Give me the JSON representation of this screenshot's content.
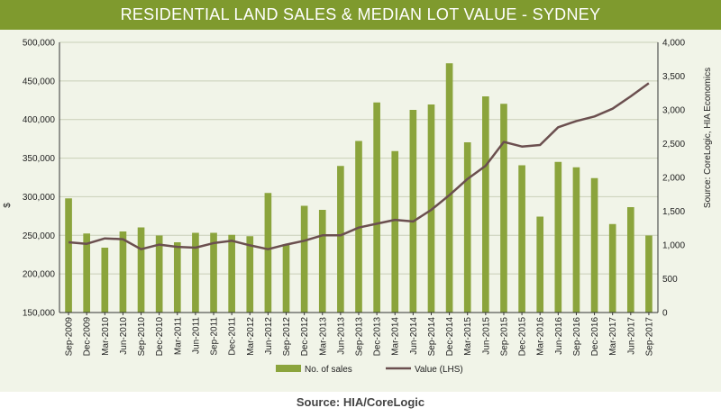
{
  "title": "RESIDENTIAL LAND SALES & MEDIAN LOT VALUE - SYDNEY",
  "footer": "Source: HIA/CoreLogic",
  "colors": {
    "title_bg": "#7f9a2e",
    "bars": "#8ba43c",
    "line": "#6b4f4f",
    "chart_bg": "#f1f4e8"
  },
  "chart_data": {
    "type": "bar",
    "categories": [
      "Sep-2009",
      "Dec-2009",
      "Mar-2010",
      "Jun-2010",
      "Sep-2010",
      "Dec-2010",
      "Mar-2011",
      "Jun-2011",
      "Sep-2011",
      "Dec-2011",
      "Mar-2012",
      "Jun-2012",
      "Sep-2012",
      "Dec-2012",
      "Mar-2013",
      "Jun-2013",
      "Sep-2013",
      "Dec-2013",
      "Mar-2014",
      "Jun-2014",
      "Sep-2014",
      "Dec-2014",
      "Mar-2015",
      "Jun-2015",
      "Sep-2015",
      "Dec-2015",
      "Mar-2016",
      "Jun-2016",
      "Sep-2016",
      "Dec-2016",
      "Mar-2017",
      "Jun-2017",
      "Sep-2017"
    ],
    "series": [
      {
        "name": "No. of sales",
        "type": "bar",
        "axis": "right",
        "values": [
          1690,
          1170,
          960,
          1200,
          1260,
          1140,
          1040,
          1180,
          1180,
          1150,
          1130,
          1770,
          1010,
          1580,
          1520,
          2170,
          2540,
          3110,
          2390,
          3000,
          3080,
          3690,
          2520,
          3200,
          3090,
          2180,
          1420,
          2230,
          2150,
          1990,
          1310,
          1560,
          1140
        ]
      },
      {
        "name": "Value (LHS)",
        "type": "line",
        "axis": "left",
        "values": [
          241000,
          239000,
          246000,
          245000,
          232000,
          238000,
          235000,
          234000,
          240000,
          243000,
          237000,
          232000,
          238000,
          243000,
          250000,
          250000,
          260000,
          265000,
          270000,
          268000,
          283000,
          302000,
          323000,
          340000,
          371000,
          365000,
          367000,
          390000,
          398000,
          404000,
          414000,
          430000,
          447000
        ]
      }
    ],
    "y_left": {
      "label": "$",
      "ylim": [
        150000,
        500000
      ],
      "ticks": [
        "150,000",
        "200,000",
        "250,000",
        "300,000",
        "350,000",
        "400,000",
        "450,000",
        "500,000"
      ]
    },
    "y_right": {
      "ylim": [
        0,
        4000
      ],
      "ticks": [
        "0",
        "500",
        "1,000",
        "1,500",
        "2,000",
        "2,500",
        "3,000",
        "3,500",
        "4,000"
      ]
    },
    "side_note": "Source: CoreLogic, HIA Economics",
    "grid": true,
    "legend": "bottom-center"
  }
}
